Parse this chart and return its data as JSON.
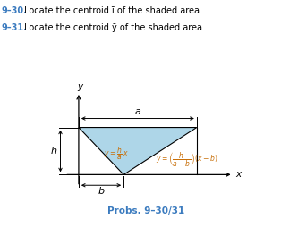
{
  "title_line1": "9–30.",
  "title_text1": "Locate the centroid ī of the shaded area.",
  "title_line2": "9–31.",
  "title_text2": "Locate the centroid ȳ of the shaded area.",
  "prob_label": "Probs. 9–30/31",
  "label_a": "a",
  "label_b": "b",
  "label_h": "h",
  "label_x": "x",
  "label_y": "y",
  "bg_color": "#ffffff",
  "shade_color": "#aed6e8",
  "text_blue": "#3b7bbf",
  "text_orange": "#c8700a",
  "axis_color": "#000000",
  "fig_width": 3.14,
  "fig_height": 2.64,
  "dpi": 100
}
